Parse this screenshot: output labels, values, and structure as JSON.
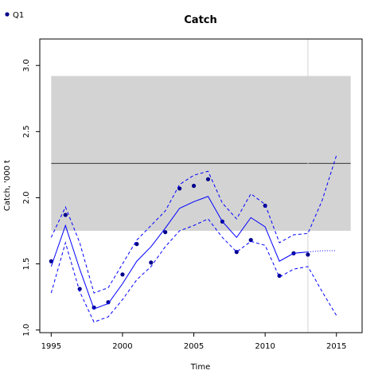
{
  "chart_data": {
    "type": "line",
    "title": "Catch",
    "xlabel": "Time",
    "ylabel": "Catch, '000 t",
    "xlim": [
      1994.2,
      2016.8
    ],
    "ylim": [
      0.98,
      3.2
    ],
    "x_ticks": [
      1995,
      2000,
      2005,
      2010,
      2015
    ],
    "y_ticks": [
      1.0,
      1.5,
      2.0,
      2.5,
      3.0
    ],
    "x_tick_labels": [
      "1995",
      "2000",
      "2005",
      "2010",
      "2015"
    ],
    "y_tick_labels": [
      "1.0",
      "1.5",
      "2.0",
      "2.5",
      "3.0"
    ],
    "grid": false,
    "legend": {
      "placement": "top-left",
      "entries": [
        "Q1"
      ]
    },
    "shaded_band": {
      "x": [
        1995,
        2016
      ],
      "y": [
        1.75,
        2.92
      ],
      "color": "#d3d3d3"
    },
    "reference_line_y": 2.26,
    "reference_line_x": 2013,
    "series": [
      {
        "name": "Q1",
        "style": "points",
        "color": "#00008b",
        "x": [
          1995,
          1996,
          1997,
          1998,
          1999,
          2000,
          2001,
          2002,
          2003,
          2004,
          2005,
          2006,
          2007,
          2008,
          2009,
          2010,
          2011,
          2012,
          2013
        ],
        "y": [
          1.52,
          1.87,
          1.31,
          1.17,
          1.21,
          1.42,
          1.65,
          1.51,
          1.74,
          2.07,
          2.09,
          2.14,
          1.82,
          1.59,
          1.68,
          1.94,
          1.41,
          1.58,
          1.57
        ]
      },
      {
        "style": "solid",
        "color": "#0000ff",
        "x": [
          1995,
          1996,
          1997,
          1998,
          1999,
          2000,
          2001,
          2002,
          2003,
          2004,
          2005,
          2006,
          2007,
          2008,
          2009,
          2010,
          2011,
          2012,
          2013
        ],
        "y": [
          1.48,
          1.79,
          1.46,
          1.16,
          1.2,
          1.35,
          1.52,
          1.63,
          1.77,
          1.92,
          1.97,
          2.01,
          1.82,
          1.7,
          1.85,
          1.78,
          1.52,
          1.58,
          1.59
        ]
      },
      {
        "style": "dashed",
        "color": "#0000ff",
        "x": [
          1995,
          1996,
          1997,
          1998,
          1999,
          2000,
          2001,
          2002,
          2003,
          2004,
          2005,
          2006,
          2007,
          2008,
          2009,
          2010,
          2011,
          2012,
          2013,
          2014,
          2015
        ],
        "y": [
          1.7,
          1.93,
          1.66,
          1.28,
          1.32,
          1.5,
          1.68,
          1.79,
          1.9,
          2.1,
          2.17,
          2.2,
          1.96,
          1.84,
          2.03,
          1.95,
          1.66,
          1.72,
          1.73,
          1.98,
          2.32
        ]
      },
      {
        "style": "dashed",
        "color": "#0000ff",
        "x": [
          1995,
          1996,
          1997,
          1998,
          1999,
          2000,
          2001,
          2002,
          2003,
          2004,
          2005,
          2006,
          2007,
          2008,
          2009,
          2010,
          2011,
          2012,
          2013,
          2014,
          2015
        ],
        "y": [
          1.28,
          1.66,
          1.29,
          1.06,
          1.1,
          1.23,
          1.38,
          1.48,
          1.63,
          1.75,
          1.79,
          1.84,
          1.7,
          1.59,
          1.67,
          1.64,
          1.4,
          1.46,
          1.48,
          1.29,
          1.11
        ]
      },
      {
        "style": "dotted",
        "color": "#0000ff",
        "x": [
          2013,
          2014,
          2015
        ],
        "y": [
          1.59,
          1.6,
          1.6
        ]
      }
    ]
  }
}
